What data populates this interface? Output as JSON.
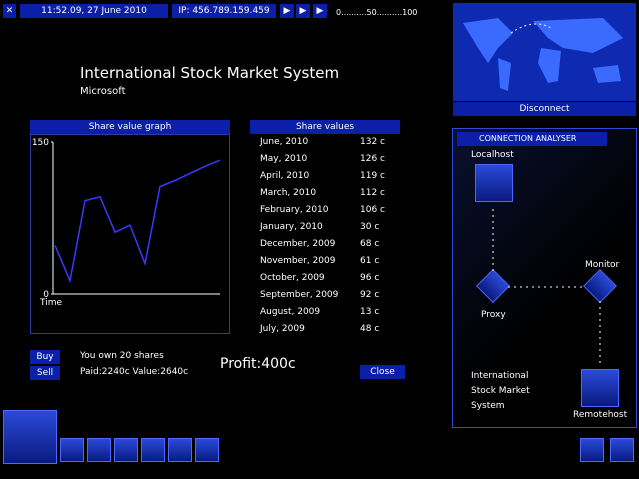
{
  "top_bar": {
    "datetime": "11:52.09, 27 June 2010",
    "ip": "IP: 456.789.159.459",
    "scale": "0..........50..........100"
  },
  "header": {
    "title": "International Stock Market System",
    "company": "Microsoft"
  },
  "graph": {
    "title": "Share value graph",
    "values": [
      48,
      13,
      92,
      96,
      61,
      68,
      30,
      106,
      112,
      119,
      126,
      132
    ],
    "ylim": [
      0,
      150
    ],
    "yticks": [
      0,
      150
    ],
    "xlabel": "Time",
    "color": "#3a3aff"
  },
  "table": {
    "title": "Share values",
    "rows": [
      [
        "June, 2010",
        "132 c"
      ],
      [
        "May, 2010",
        "126 c"
      ],
      [
        "April, 2010",
        "119 c"
      ],
      [
        "March, 2010",
        "112 c"
      ],
      [
        "February, 2010",
        "106 c"
      ],
      [
        "January, 2010",
        "30 c"
      ],
      [
        "December, 2009",
        "68 c"
      ],
      [
        "November, 2009",
        "61 c"
      ],
      [
        "October, 2009",
        "96 c"
      ],
      [
        "September, 2009",
        "92 c"
      ],
      [
        "August, 2009",
        "13 c"
      ],
      [
        "July, 2009",
        "48 c"
      ]
    ]
  },
  "trade": {
    "buy": "Buy",
    "sell": "Sell",
    "owned": "You own 20 shares",
    "paid_value": "Paid:2240c Value:2640c",
    "profit": "Profit:400c",
    "close": "Close"
  },
  "connection": {
    "disconnect": "Disconnect",
    "title": "CONNECTION ANALYSER",
    "localhost": "Localhost",
    "monitor": "Monitor",
    "proxy": "Proxy",
    "target": [
      "International",
      "Stock Market",
      "System"
    ],
    "remotehost": "Remotehost"
  }
}
